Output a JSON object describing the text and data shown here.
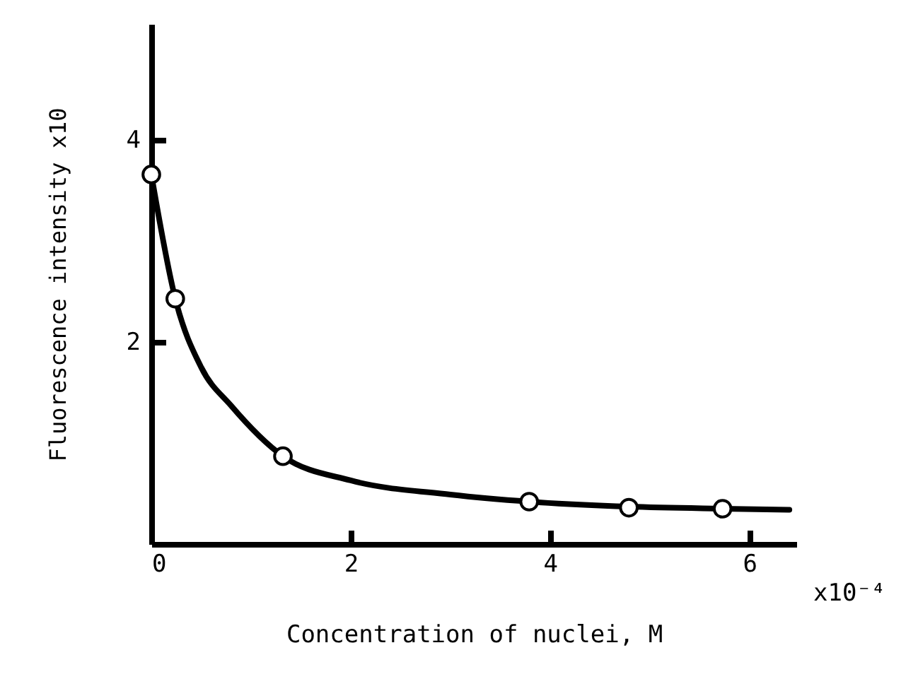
{
  "chart_data": {
    "type": "scatter",
    "xlabel": "Concentration of nuclei, M",
    "ylabel": "Fluorescence intensity  x10",
    "annotations": [
      "x10⁻⁴"
    ],
    "xlim": [
      0,
      6.47
    ],
    "ylim": [
      0,
      5.15
    ],
    "xticks": [
      0,
      2,
      4,
      6
    ],
    "yticks": [
      2,
      4
    ],
    "grid": false,
    "series": [
      {
        "type": "line",
        "color": "#000000",
        "marker": "none",
        "line_style": "solid",
        "x": [
          0,
          0.24,
          0.5,
          0.8,
          1.32,
          2,
          3,
          3.79,
          4.79,
          5.73,
          6.4
        ],
        "values": [
          3.66,
          2.43,
          1.75,
          1.37,
          0.87,
          0.63,
          0.49,
          0.42,
          0.37,
          0.35,
          0.34
        ]
      },
      {
        "color": "#000000",
        "marker": "circle",
        "x": [
          0,
          0.24,
          1.32,
          3.79,
          4.79,
          5.73
        ],
        "values": [
          3.66,
          2.43,
          0.87,
          0.42,
          0.36,
          0.35
        ]
      }
    ]
  }
}
